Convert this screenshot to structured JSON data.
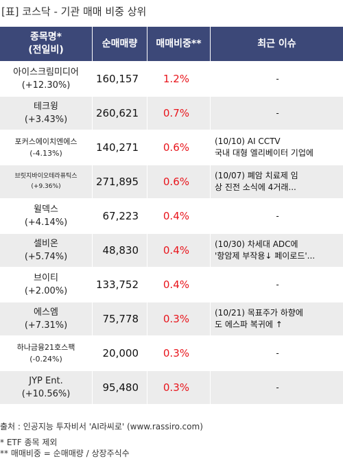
{
  "title": "[표] 코스닥 - 기관 매매 비중 상위",
  "table": {
    "headers": {
      "name_line1": "종목명*",
      "name_line2": "(전일비)",
      "volume": "순매매량",
      "ratio": "매매비중**",
      "issue": "최근 이슈"
    },
    "rows": [
      {
        "name": "아이스크림미디어",
        "change": "(+12.30%)",
        "volume": "160,157",
        "ratio": "1.2%",
        "issue_line1": "-",
        "issue_line2": ""
      },
      {
        "name": "테크윙",
        "change": "(+3.43%)",
        "volume": "260,621",
        "ratio": "0.7%",
        "issue_line1": "-",
        "issue_line2": ""
      },
      {
        "name": "포커스에이치엔에스",
        "change": "(-4.13%)",
        "volume": "140,271",
        "ratio": "0.6%",
        "issue_line1": "(10/10) AI CCTV",
        "issue_line2": "국내 대형 엘리베이터 기업에"
      },
      {
        "name": "브릿지바이오테라퓨틱스",
        "change": "(+9.36%)",
        "volume": "271,895",
        "ratio": "0.6%",
        "issue_line1": "(10/07) 폐암 치료제 임",
        "issue_line2": "상 진전 소식에 4거래..."
      },
      {
        "name": "윌덱스",
        "change": "(+4.14%)",
        "volume": "67,223",
        "ratio": "0.4%",
        "issue_line1": "-",
        "issue_line2": ""
      },
      {
        "name": "셀비온",
        "change": "(+5.74%)",
        "volume": "48,830",
        "ratio": "0.4%",
        "issue_line1": "(10/30) 차세대 ADC에",
        "issue_line2": "'항암제 부작용↓ 페이로드'..."
      },
      {
        "name": "브이티",
        "change": "(+2.00%)",
        "volume": "133,752",
        "ratio": "0.4%",
        "issue_line1": "-",
        "issue_line2": ""
      },
      {
        "name": "에스엠",
        "change": "(+7.31%)",
        "volume": "75,778",
        "ratio": "0.3%",
        "issue_line1": "(10/21) 목표주가 하향에",
        "issue_line2": "도 에스파 복귀에 ↑"
      },
      {
        "name": "하나금융21호스팩",
        "change": "(-0.24%)",
        "volume": "20,000",
        "ratio": "0.3%",
        "issue_line1": "-",
        "issue_line2": ""
      },
      {
        "name": "JYP Ent.",
        "change": "(+10.56%)",
        "volume": "95,480",
        "ratio": "0.3%",
        "issue_line1": "-",
        "issue_line2": ""
      }
    ]
  },
  "footer": {
    "source": "출처 : 인공지능 투자비서 'AI라씨로' (www.rassiro.com)",
    "note1": "* ETF 종목 제외",
    "note2": "** 매매비중 = 순매매량 / 상장주식수"
  }
}
